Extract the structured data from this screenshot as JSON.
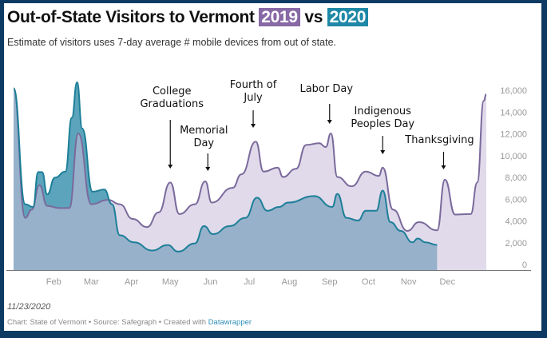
{
  "title": {
    "prefix": "Out-of-State Visitors to Vermont",
    "year_a": "2019",
    "middle": "vs",
    "year_b": "2020"
  },
  "subtitle": "Estimate of visitors uses 7-day average # mobile devices from out of state.",
  "footer": {
    "date": "11/23/2020",
    "credit": "Chart: State of Vermont • Source: Safegraph • Created with",
    "credit_link": "Datawrapper"
  },
  "colors": {
    "2019_line": "#7a6a9c",
    "2019_fill": "#c9bbd9",
    "2020_line": "#1d7f98",
    "2020_fill": "#4a9ab4",
    "badge_2019": "#8769a6",
    "badge_2020": "#1f88a6"
  },
  "chart_data": {
    "type": "area",
    "title": "Out-of-State Visitors to Vermont 2019 vs 2020",
    "xlabel": "",
    "ylabel": "",
    "ylim": [
      0,
      16000
    ],
    "y_ticks": [
      "0",
      "2,000",
      "4,000",
      "6,000",
      "8,000",
      "10,000",
      "12,000",
      "14,000",
      "16,000"
    ],
    "x_ticks": [
      "Feb",
      "Mar",
      "Apr",
      "May",
      "Jun",
      "Jul",
      "Aug",
      "Sep",
      "Oct",
      "Nov",
      "Dec"
    ],
    "grid": false,
    "series": [
      {
        "name": "2019",
        "points": [
          [
            "01-01",
            16700
          ],
          [
            "01-10",
            4800
          ],
          [
            "01-15",
            5550
          ],
          [
            "01-21",
            7800
          ],
          [
            "01-27",
            5900
          ],
          [
            "02-05",
            5700
          ],
          [
            "02-13",
            5700
          ],
          [
            "02-20",
            12550
          ],
          [
            "03-01",
            6050
          ],
          [
            "03-14",
            6450
          ],
          [
            "03-23",
            6050
          ],
          [
            "04-02",
            4700
          ],
          [
            "04-13",
            3950
          ],
          [
            "04-22",
            5300
          ],
          [
            "05-01",
            8050
          ],
          [
            "05-08",
            5150
          ],
          [
            "05-20",
            6050
          ],
          [
            "05-28",
            8150
          ],
          [
            "06-02",
            6200
          ],
          [
            "06-18",
            7550
          ],
          [
            "06-25",
            8800
          ],
          [
            "07-06",
            11800
          ],
          [
            "07-12",
            9050
          ],
          [
            "07-23",
            9400
          ],
          [
            "07-27",
            8550
          ],
          [
            "08-06",
            9300
          ],
          [
            "08-14",
            11500
          ],
          [
            "08-24",
            11650
          ],
          [
            "08-29",
            11300
          ],
          [
            "09-02",
            12550
          ],
          [
            "09-07",
            8550
          ],
          [
            "09-18",
            7700
          ],
          [
            "09-29",
            9050
          ],
          [
            "10-09",
            8650
          ],
          [
            "10-12",
            9400
          ],
          [
            "10-20",
            5550
          ],
          [
            "10-31",
            3600
          ],
          [
            "11-09",
            4400
          ],
          [
            "11-23",
            3650
          ],
          [
            "11-29",
            8300
          ],
          [
            "12-07",
            5100
          ],
          [
            "12-19",
            5150
          ],
          [
            "12-24",
            8050
          ],
          [
            "12-29",
            15550
          ],
          [
            "12-31",
            16150
          ]
        ]
      },
      {
        "name": "2020",
        "points": [
          [
            "01-01",
            16700
          ],
          [
            "01-10",
            6050
          ],
          [
            "01-16",
            5800
          ],
          [
            "01-20",
            9000
          ],
          [
            "01-23",
            9000
          ],
          [
            "01-27",
            6950
          ],
          [
            "02-02",
            8500
          ],
          [
            "02-10",
            9050
          ],
          [
            "02-15",
            14000
          ],
          [
            "02-19",
            17250
          ],
          [
            "02-23",
            13000
          ],
          [
            "03-02",
            7200
          ],
          [
            "03-11",
            7400
          ],
          [
            "03-17",
            6050
          ],
          [
            "03-23",
            3200
          ],
          [
            "04-03",
            2550
          ],
          [
            "04-17",
            1800
          ],
          [
            "04-29",
            2300
          ],
          [
            "05-07",
            1700
          ],
          [
            "05-20",
            2450
          ],
          [
            "05-27",
            4050
          ],
          [
            "06-03",
            3300
          ],
          [
            "06-16",
            4050
          ],
          [
            "06-28",
            4800
          ],
          [
            "07-07",
            6650
          ],
          [
            "07-15",
            5450
          ],
          [
            "07-24",
            5800
          ],
          [
            "07-31",
            6200
          ],
          [
            "08-20",
            6800
          ],
          [
            "09-03",
            5800
          ],
          [
            "09-07",
            7000
          ],
          [
            "09-14",
            4800
          ],
          [
            "09-23",
            4550
          ],
          [
            "09-29",
            5450
          ],
          [
            "10-07",
            5450
          ],
          [
            "10-12",
            7300
          ],
          [
            "10-18",
            4400
          ],
          [
            "10-26",
            3600
          ],
          [
            "11-04",
            2550
          ],
          [
            "11-08",
            2900
          ],
          [
            "11-14",
            2550
          ],
          [
            "11-23",
            2300
          ]
        ]
      }
    ],
    "annotations": [
      {
        "label": [
          "College",
          "Graduations"
        ],
        "date": "05-01"
      },
      {
        "label": [
          "Memorial",
          "Day"
        ],
        "date": "05-30"
      },
      {
        "label": [
          "Fourth of",
          "July"
        ],
        "date": "07-04"
      },
      {
        "label": [
          "Labor Day"
        ],
        "date": "09-01"
      },
      {
        "label": [
          "Indigenous",
          "Peoples Day"
        ],
        "date": "10-12"
      },
      {
        "label": [
          "Thanksgiving"
        ],
        "date": "11-28"
      }
    ]
  }
}
